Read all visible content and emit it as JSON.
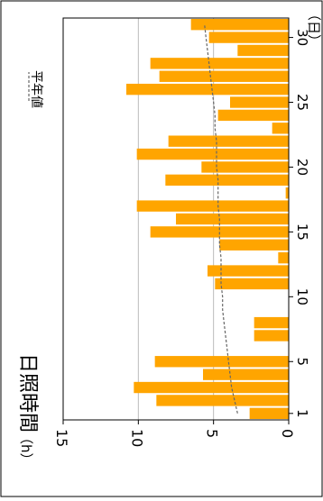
{
  "chart_data": {
    "type": "bar",
    "title": "日照時間",
    "ylabel": "（h）",
    "xlabel": "（日）",
    "legend": "平年値",
    "legend_position": "top-right",
    "grid": true,
    "orientation": "rotated-90-clockwise",
    "ylim": [
      0,
      15
    ],
    "y_ticks": [
      "0",
      "5",
      "10",
      "15"
    ],
    "x_ticks": [
      {
        "day": 1,
        "label": "1"
      },
      {
        "day": 5,
        "label": "5"
      },
      {
        "day": 10,
        "label": "10"
      },
      {
        "day": 15,
        "label": "15"
      },
      {
        "day": 20,
        "label": "20"
      },
      {
        "day": 25,
        "label": "25"
      },
      {
        "day": 30,
        "label": "30"
      }
    ],
    "days": [
      1,
      2,
      3,
      4,
      5,
      6,
      7,
      8,
      9,
      10,
      11,
      12,
      13,
      14,
      15,
      16,
      17,
      18,
      19,
      20,
      21,
      22,
      23,
      24,
      25,
      26,
      27,
      28,
      29,
      30,
      31
    ],
    "series": [
      {
        "name": "日照時間",
        "type": "bar",
        "color": "#ffa500",
        "values": [
          2.6,
          8.8,
          10.3,
          5.7,
          8.9,
          0,
          2.3,
          2.3,
          0,
          0,
          4.9,
          5.4,
          0.7,
          4.6,
          9.2,
          7.5,
          10.1,
          0.2,
          8.2,
          5.8,
          10.1,
          8.0,
          1.1,
          4.7,
          3.9,
          10.8,
          8.6,
          9.2,
          3.4,
          5.3,
          6.5
        ]
      },
      {
        "name": "平年値",
        "type": "line",
        "style": "dashed",
        "color": "#666666",
        "values": [
          3.4,
          3.6,
          3.8,
          3.9,
          4.0,
          4.1,
          4.2,
          4.3,
          4.4,
          4.4,
          4.5,
          4.5,
          4.5,
          4.6,
          4.6,
          4.6,
          4.7,
          4.7,
          4.7,
          4.8,
          4.8,
          4.8,
          4.9,
          4.9,
          5.0,
          5.1,
          5.2,
          5.3,
          5.4,
          5.5,
          5.6
        ]
      }
    ]
  }
}
